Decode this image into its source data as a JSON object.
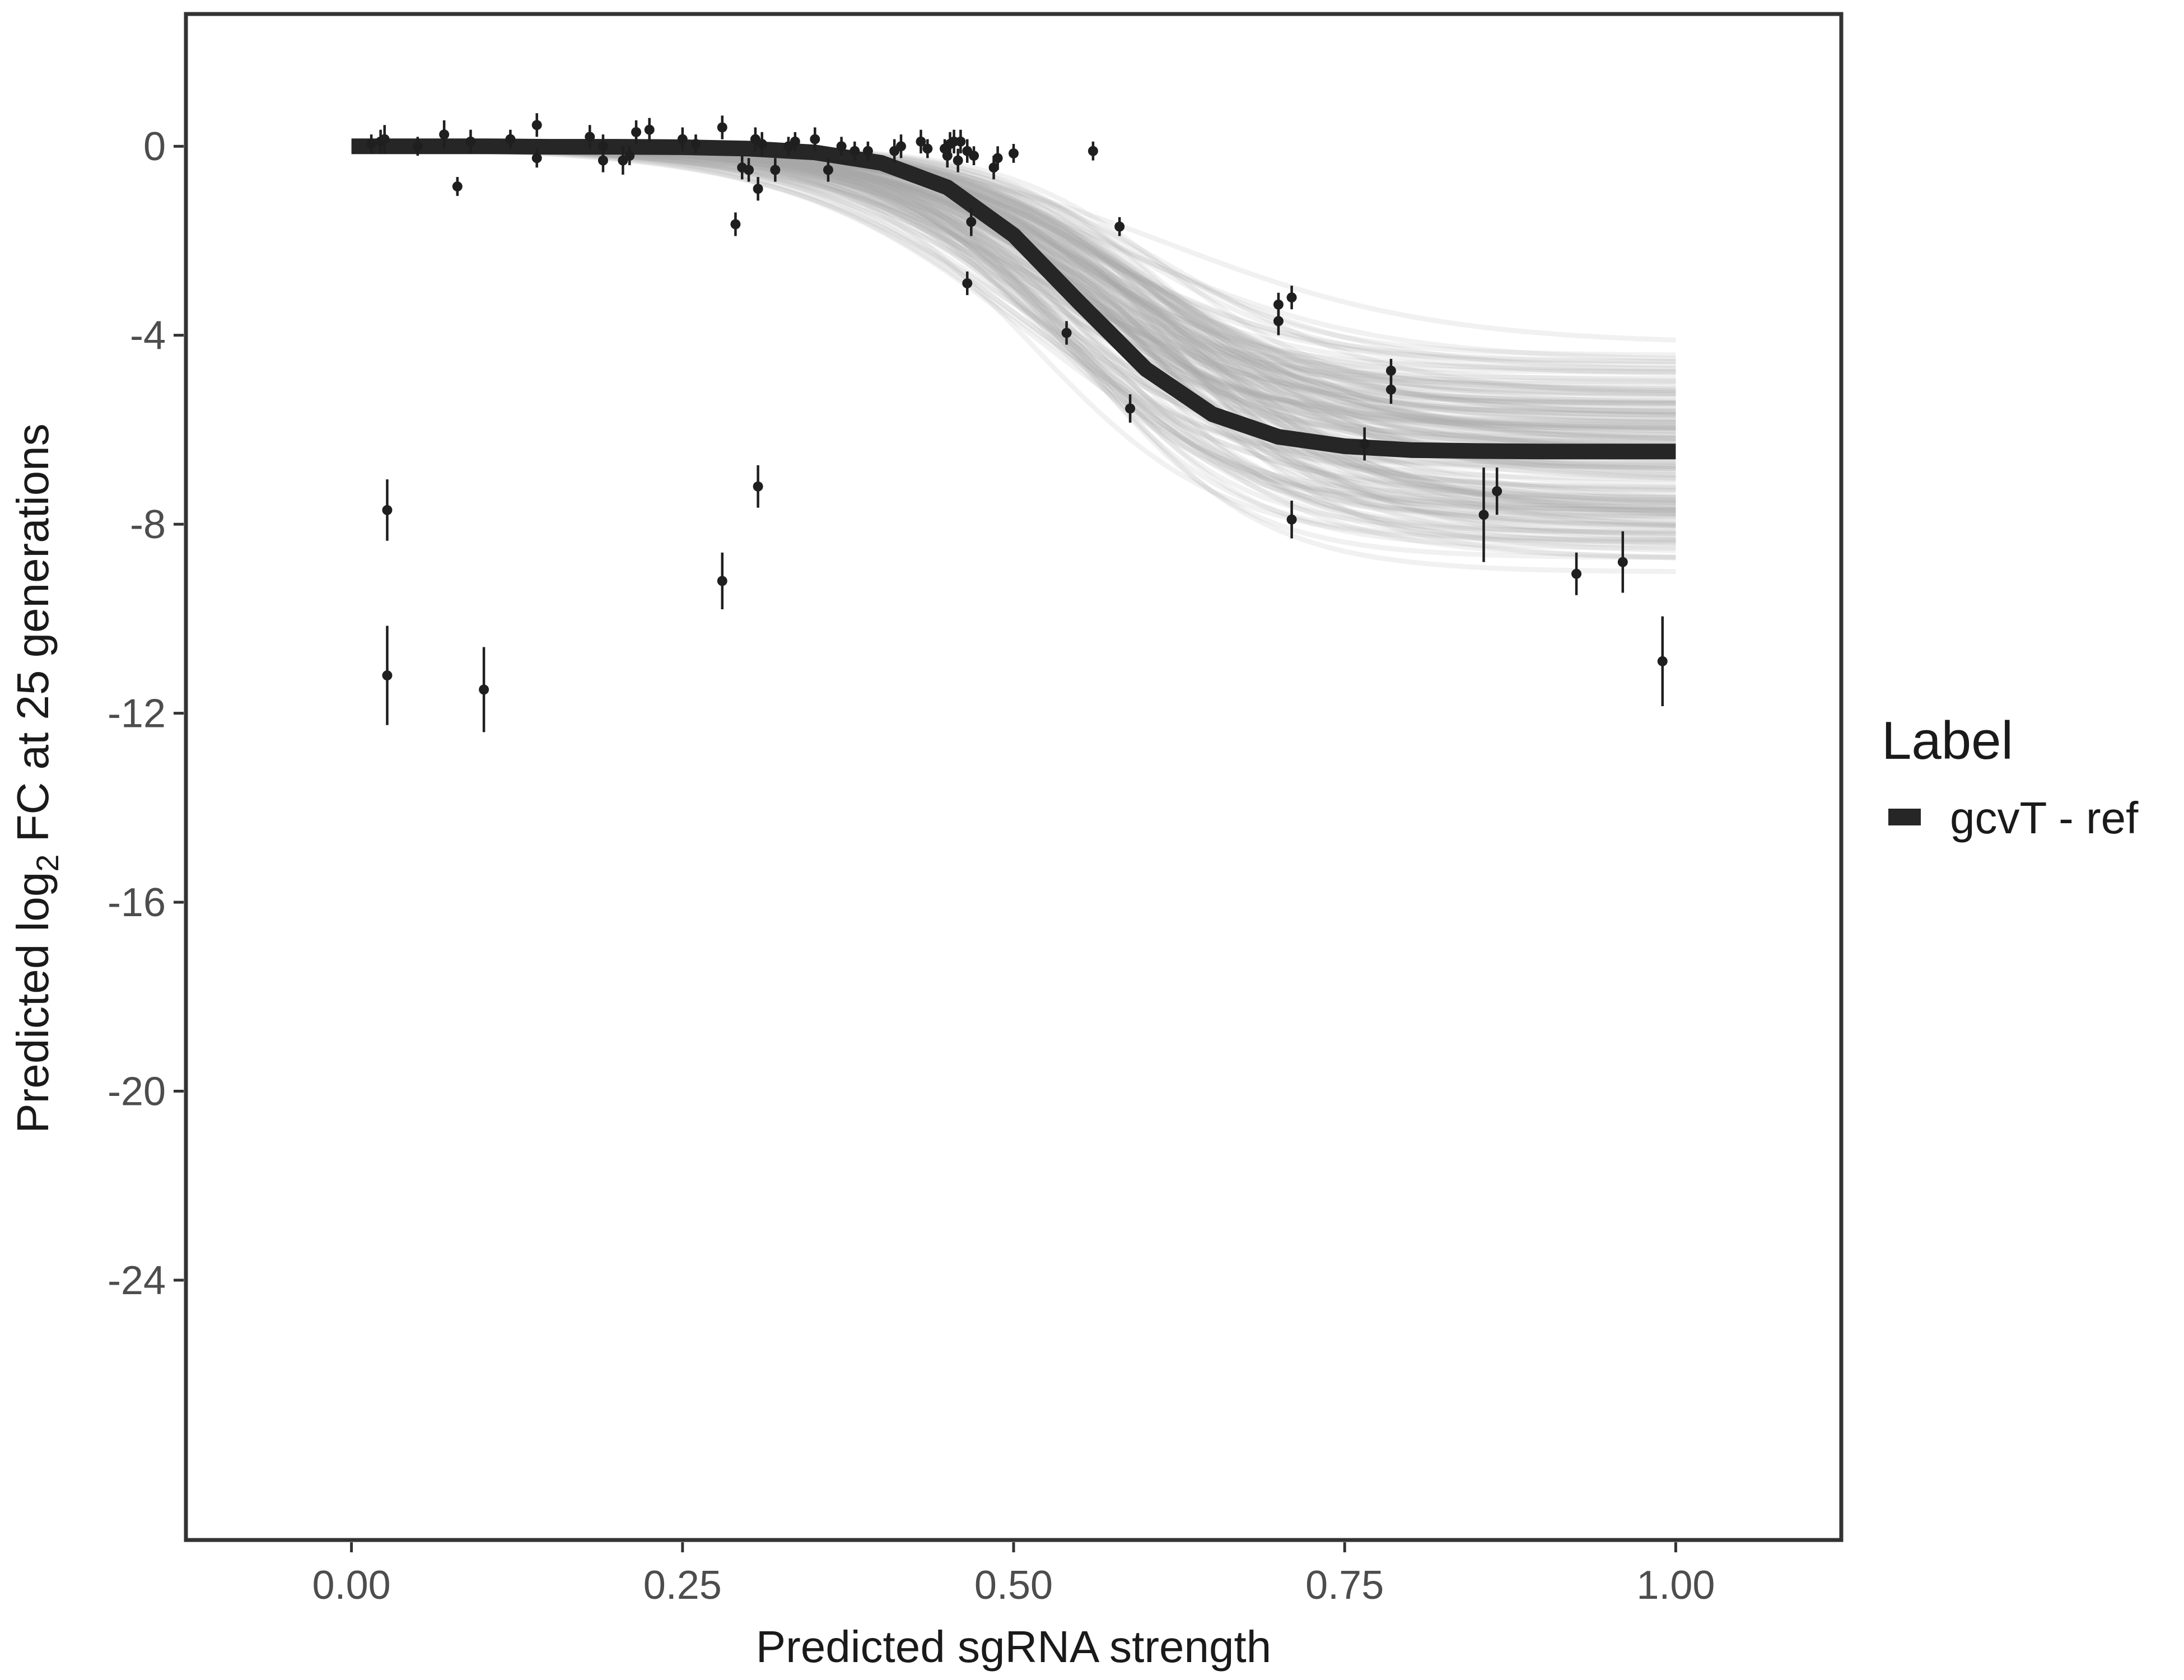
{
  "chart_data": {
    "type": "line",
    "title": "",
    "xlabel": "Predicted sgRNA strength",
    "ylabel_prefix": "Predicted  log",
    "ylabel_subscript": "2",
    "ylabel_suffix": " FC at 25 generations",
    "xlim": [
      -0.125,
      1.125
    ],
    "ylim": [
      -29.5,
      2.8
    ],
    "x_ticks": [
      0,
      0.25,
      0.5,
      0.75,
      1
    ],
    "x_tick_labels": [
      "0.00",
      "0.25",
      "0.50",
      "0.75",
      "1.00"
    ],
    "y_ticks": [
      0,
      -4,
      -8,
      -12,
      -16,
      -20,
      -24
    ],
    "y_tick_labels": [
      "0",
      "-4",
      "-8",
      "-12",
      "-16",
      "-20",
      "-24"
    ],
    "grid": false,
    "legend": {
      "title": "Label",
      "position": "right",
      "entries": [
        {
          "label": "gcvT - ref",
          "color": "#262626"
        }
      ]
    },
    "fit_curve": {
      "name": "gcvT - ref",
      "color": "#262626",
      "x": [
        0,
        0.05,
        0.1,
        0.15,
        0.2,
        0.25,
        0.3,
        0.35,
        0.4,
        0.45,
        0.5,
        0.55,
        0.6,
        0.65,
        0.7,
        0.75,
        0.8,
        0.85,
        0.9,
        0.95,
        1.0
      ],
      "y": [
        0.0,
        0.0,
        0.0,
        -0.01,
        -0.01,
        -0.02,
        -0.05,
        -0.13,
        -0.35,
        -0.87,
        -1.88,
        -3.32,
        -4.72,
        -5.67,
        -6.15,
        -6.35,
        -6.43,
        -6.45,
        -6.46,
        -6.46,
        -6.46
      ]
    },
    "posterior_band": {
      "color": "#a6a6a6",
      "draw_count": 160,
      "plateau_range": [
        -9.3,
        -4.1
      ],
      "midpoint_range": [
        0.5,
        0.63
      ]
    },
    "points": [
      {
        "x": 0.015,
        "y": 0.05,
        "err": 0.2
      },
      {
        "x": 0.022,
        "y": 0.1,
        "err": 0.25
      },
      {
        "x": 0.025,
        "y": 0.15,
        "err": 0.3
      },
      {
        "x": 0.027,
        "y": -7.7,
        "err": 0.65
      },
      {
        "x": 0.027,
        "y": -11.2,
        "err": 1.05
      },
      {
        "x": 0.05,
        "y": 0.0,
        "err": 0.2
      },
      {
        "x": 0.07,
        "y": 0.25,
        "err": 0.3
      },
      {
        "x": 0.08,
        "y": -0.85,
        "err": 0.2
      },
      {
        "x": 0.09,
        "y": 0.1,
        "err": 0.25
      },
      {
        "x": 0.1,
        "y": -11.5,
        "err": 0.9
      },
      {
        "x": 0.12,
        "y": 0.15,
        "err": 0.2
      },
      {
        "x": 0.14,
        "y": 0.45,
        "err": 0.25
      },
      {
        "x": 0.14,
        "y": -0.25,
        "err": 0.2
      },
      {
        "x": 0.18,
        "y": 0.2,
        "err": 0.25
      },
      {
        "x": 0.19,
        "y": -0.3,
        "err": 0.25
      },
      {
        "x": 0.19,
        "y": 0.0,
        "err": 0.25
      },
      {
        "x": 0.205,
        "y": -0.3,
        "err": 0.3
      },
      {
        "x": 0.21,
        "y": -0.2,
        "err": 0.2
      },
      {
        "x": 0.215,
        "y": 0.3,
        "err": 0.25
      },
      {
        "x": 0.225,
        "y": 0.35,
        "err": 0.25
      },
      {
        "x": 0.25,
        "y": 0.15,
        "err": 0.25
      },
      {
        "x": 0.26,
        "y": 0.05,
        "err": 0.2
      },
      {
        "x": 0.28,
        "y": 0.4,
        "err": 0.25
      },
      {
        "x": 0.28,
        "y": -9.2,
        "err": 0.6
      },
      {
        "x": 0.29,
        "y": -1.65,
        "err": 0.25
      },
      {
        "x": 0.295,
        "y": -0.45,
        "err": 0.25
      },
      {
        "x": 0.3,
        "y": -0.5,
        "err": 0.25
      },
      {
        "x": 0.305,
        "y": 0.15,
        "err": 0.25
      },
      {
        "x": 0.307,
        "y": -0.9,
        "err": 0.25
      },
      {
        "x": 0.307,
        "y": -7.2,
        "err": 0.45
      },
      {
        "x": 0.31,
        "y": 0.05,
        "err": 0.25
      },
      {
        "x": 0.32,
        "y": -0.5,
        "err": 0.25
      },
      {
        "x": 0.33,
        "y": 0.0,
        "err": 0.2
      },
      {
        "x": 0.335,
        "y": 0.1,
        "err": 0.2
      },
      {
        "x": 0.35,
        "y": 0.15,
        "err": 0.25
      },
      {
        "x": 0.36,
        "y": -0.5,
        "err": 0.25
      },
      {
        "x": 0.37,
        "y": 0.0,
        "err": 0.2
      },
      {
        "x": 0.38,
        "y": -0.1,
        "err": 0.2
      },
      {
        "x": 0.39,
        "y": -0.1,
        "err": 0.2
      },
      {
        "x": 0.41,
        "y": -0.1,
        "err": 0.25
      },
      {
        "x": 0.415,
        "y": 0.0,
        "err": 0.25
      },
      {
        "x": 0.43,
        "y": 0.1,
        "err": 0.25
      },
      {
        "x": 0.435,
        "y": -0.05,
        "err": 0.2
      },
      {
        "x": 0.448,
        "y": -0.05,
        "err": 0.2
      },
      {
        "x": 0.45,
        "y": -0.2,
        "err": 0.25
      },
      {
        "x": 0.452,
        "y": 0.05,
        "err": 0.25
      },
      {
        "x": 0.455,
        "y": 0.1,
        "err": 0.25
      },
      {
        "x": 0.458,
        "y": -0.3,
        "err": 0.25
      },
      {
        "x": 0.46,
        "y": 0.1,
        "err": 0.25
      },
      {
        "x": 0.465,
        "y": -0.1,
        "err": 0.25
      },
      {
        "x": 0.465,
        "y": -2.9,
        "err": 0.25
      },
      {
        "x": 0.468,
        "y": -1.6,
        "err": 0.3
      },
      {
        "x": 0.47,
        "y": -0.2,
        "err": 0.2
      },
      {
        "x": 0.485,
        "y": -0.45,
        "err": 0.25
      },
      {
        "x": 0.488,
        "y": -0.25,
        "err": 0.25
      },
      {
        "x": 0.5,
        "y": -0.15,
        "err": 0.2
      },
      {
        "x": 0.54,
        "y": -3.95,
        "err": 0.25
      },
      {
        "x": 0.56,
        "y": -0.1,
        "err": 0.2
      },
      {
        "x": 0.58,
        "y": -1.7,
        "err": 0.2
      },
      {
        "x": 0.588,
        "y": -5.55,
        "err": 0.3
      },
      {
        "x": 0.7,
        "y": -3.35,
        "err": 0.25
      },
      {
        "x": 0.7,
        "y": -3.7,
        "err": 0.3
      },
      {
        "x": 0.71,
        "y": -3.2,
        "err": 0.25
      },
      {
        "x": 0.71,
        "y": -7.9,
        "err": 0.4
      },
      {
        "x": 0.765,
        "y": -6.3,
        "err": 0.35
      },
      {
        "x": 0.785,
        "y": -4.75,
        "err": 0.25
      },
      {
        "x": 0.785,
        "y": -5.15,
        "err": 0.3
      },
      {
        "x": 0.855,
        "y": -7.8,
        "err": 1.0
      },
      {
        "x": 0.865,
        "y": -7.3,
        "err": 0.5
      },
      {
        "x": 0.925,
        "y": -9.05,
        "err": 0.45
      },
      {
        "x": 0.96,
        "y": -8.8,
        "err": 0.65
      },
      {
        "x": 0.99,
        "y": -10.9,
        "err": 0.95
      }
    ]
  }
}
